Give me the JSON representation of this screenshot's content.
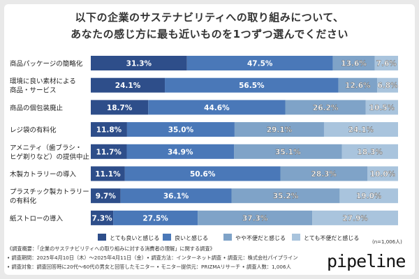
{
  "title_line1": "以下の企業のサステナビリティへの取り組みについて、",
  "title_line2": "あなたの感じ方に最も近いものを1つずつ選んでください",
  "n_label": "(n=1,006人)",
  "footnotes": [
    "《調査概要：「企業のサステナビリティへの取り組みに対する消費者の理解」に関する調査》",
    "• 調査期間：2025年4月10日（木）～2025年4月11日（金）• 調査方法：インターネット調査 • 調査元：株式会社パイプライン",
    "• 調査対象：調査回答時に20代～60代の男女と回答したモニター • モニター提供元：PRIZMAリサーチ • 調査人数：1,006人"
  ],
  "logo_text": "pipeline",
  "colors": [
    "#2e4e8a",
    "#4a78b8",
    "#7fa3c8",
    "#a9c4dd"
  ],
  "chart_data": {
    "type": "bar",
    "orientation": "horizontal",
    "stacked": true,
    "unit": "%",
    "categories": [
      [
        "商品パッケージの簡略化"
      ],
      [
        "環境に良い素材による",
        "商品・サービス"
      ],
      [
        "商品の個包装廃止"
      ],
      [
        "レジ袋の有料化"
      ],
      [
        "アメニティ（歯ブラシ・",
        "ヒゲ剃りなど）の提供中止"
      ],
      [
        "木製カトラリーの導入"
      ],
      [
        "プラスチック製カトラリー",
        "の有料化"
      ],
      [
        "紙ストローの導入"
      ]
    ],
    "series": [
      {
        "name": "とても良いと感じる",
        "values": [
          31.3,
          24.1,
          18.7,
          11.8,
          11.7,
          11.1,
          9.7,
          7.3
        ]
      },
      {
        "name": "良いと感じる",
        "values": [
          47.5,
          56.5,
          44.6,
          35.0,
          34.9,
          50.6,
          36.1,
          27.5
        ]
      },
      {
        "name": "やや不便だと感じる",
        "values": [
          13.6,
          12.6,
          26.2,
          29.1,
          35.1,
          28.3,
          35.2,
          37.3
        ]
      },
      {
        "name": "とても不便だと感じる",
        "values": [
          7.6,
          6.8,
          10.5,
          24.1,
          18.3,
          10.0,
          19.0,
          27.9
        ]
      }
    ],
    "legend_position": "bottom"
  }
}
